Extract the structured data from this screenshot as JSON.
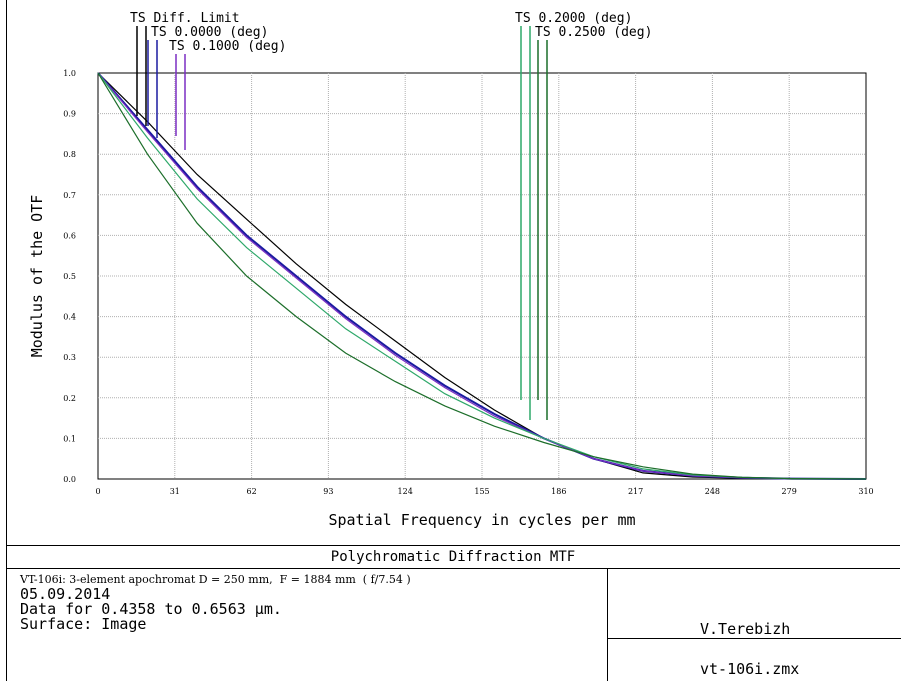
{
  "chart_data": {
    "type": "line",
    "title": "Polychromatic Diffraction MTF",
    "xlabel": "Spatial Frequency in cycles per mm",
    "ylabel": "Modulus of the OTF",
    "xlim": [
      0,
      310
    ],
    "ylim": [
      0,
      1.0
    ],
    "x_ticks": [
      "0",
      "31",
      "62",
      "93",
      "124",
      "155",
      "186",
      "217",
      "248",
      "279",
      "310"
    ],
    "y_ticks": [
      "0.0",
      "0.1",
      "0.2",
      "0.3",
      "0.4",
      "0.5",
      "0.6",
      "0.7",
      "0.8",
      "0.9",
      "1.0"
    ],
    "x": [
      0,
      20,
      40,
      60,
      80,
      100,
      120,
      140,
      160,
      180,
      200,
      220,
      240,
      260,
      280,
      310
    ],
    "series": [
      {
        "name": "TS Diff. Limit",
        "color": "#000000",
        "values": [
          1.0,
          0.88,
          0.75,
          0.64,
          0.53,
          0.43,
          0.34,
          0.25,
          0.17,
          0.1,
          0.05,
          0.015,
          0.005,
          0.002,
          0.0,
          0.0
        ]
      },
      {
        "name": "TS 0.0000 (deg)",
        "color": "#1a1aa0",
        "values": [
          1.0,
          0.86,
          0.72,
          0.6,
          0.5,
          0.4,
          0.31,
          0.23,
          0.16,
          0.1,
          0.05,
          0.02,
          0.008,
          0.003,
          0.001,
          0.0
        ]
      },
      {
        "name": "TS 0.1000 (deg)",
        "color": "#7a2ec2",
        "values": [
          1.0,
          0.855,
          0.715,
          0.595,
          0.495,
          0.395,
          0.305,
          0.225,
          0.155,
          0.1,
          0.05,
          0.02,
          0.008,
          0.003,
          0.001,
          0.0
        ]
      },
      {
        "name": "TS 0.2000 (deg)",
        "color": "#2ea86a",
        "values": [
          1.0,
          0.84,
          0.69,
          0.57,
          0.47,
          0.37,
          0.29,
          0.21,
          0.15,
          0.1,
          0.055,
          0.025,
          0.01,
          0.004,
          0.001,
          0.0
        ]
      },
      {
        "name": "TS 0.2500 (deg)",
        "color": "#1c6e2a",
        "values": [
          1.0,
          0.8,
          0.63,
          0.5,
          0.4,
          0.31,
          0.24,
          0.18,
          0.13,
          0.09,
          0.055,
          0.03,
          0.012,
          0.004,
          0.001,
          0.0
        ]
      }
    ],
    "legend_placement": "top"
  },
  "info": {
    "line1": "VT-106i: 3-element apochromat D = 250 mm,  F = 1884 mm  ( f/7.54 )",
    "line2": "05.09.2014",
    "line3": "Data for 0.4358 to 0.6563 µm.",
    "line4": "Surface: Image",
    "author": "V.Terebizh",
    "filename": "vt-106i.zmx"
  }
}
